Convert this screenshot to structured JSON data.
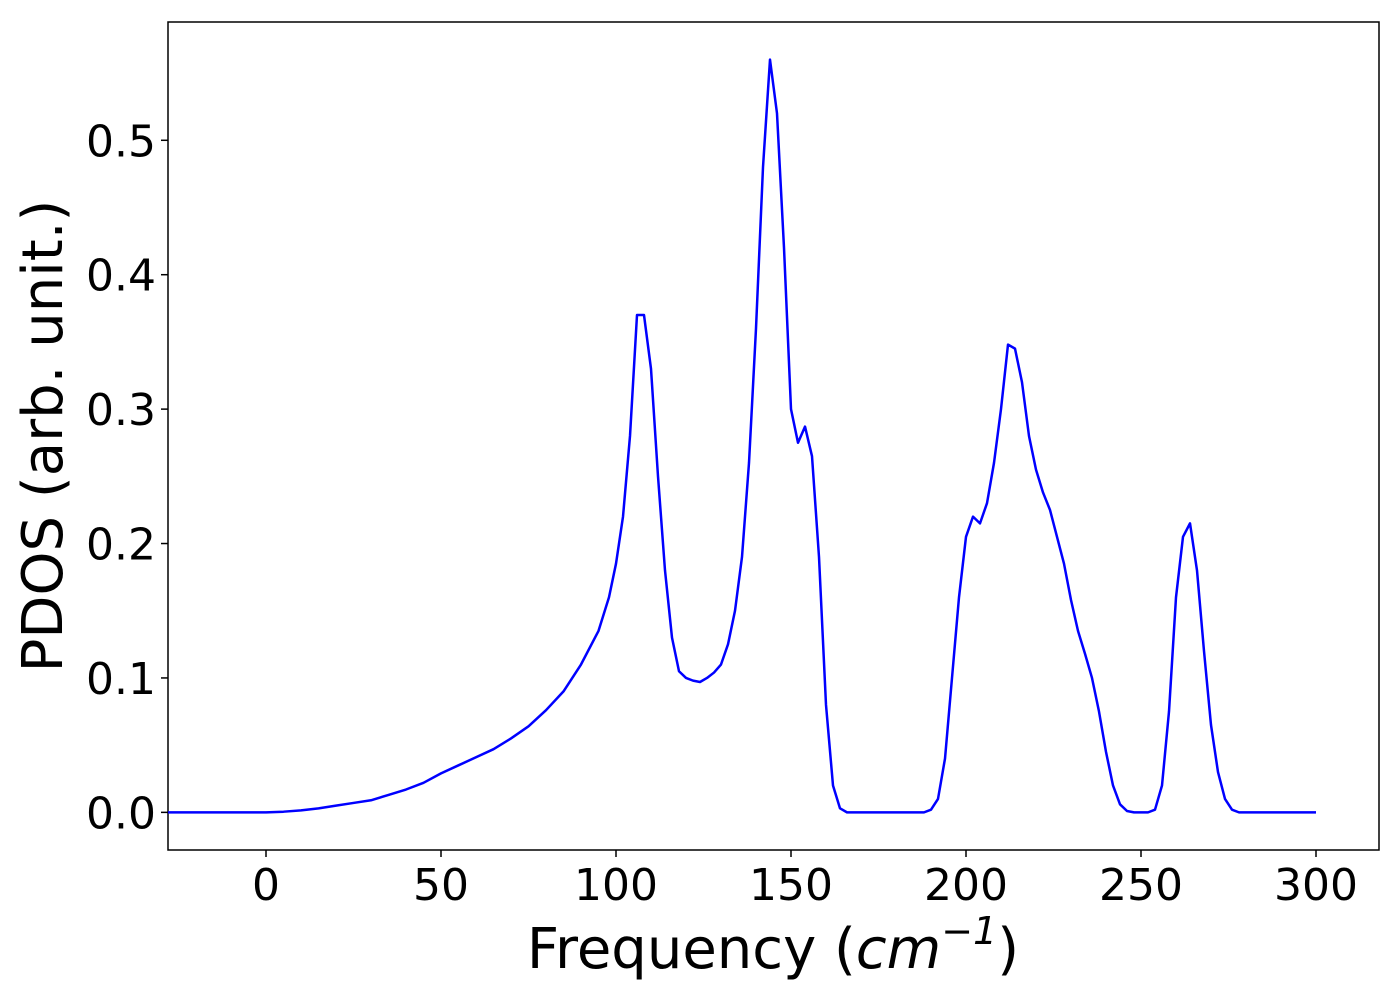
{
  "chart_data": {
    "type": "line",
    "title": "",
    "xlabel": "Frequency (",
    "xlabel_unit": "cm",
    "xlabel_exponent": "−1",
    "xlabel_close": ")",
    "ylabel": "PDOS (arb. unit.)",
    "xlim": [
      -28,
      318
    ],
    "ylim": [
      -0.028,
      0.588
    ],
    "xticks": [
      0,
      50,
      100,
      150,
      200,
      250,
      300
    ],
    "xtick_labels": [
      "0",
      "50",
      "100",
      "150",
      "200",
      "250",
      "300"
    ],
    "yticks": [
      0.0,
      0.1,
      0.2,
      0.3,
      0.4,
      0.5
    ],
    "ytick_labels": [
      "0.0",
      "0.1",
      "0.2",
      "0.3",
      "0.4",
      "0.5"
    ],
    "grid": false,
    "line_color": "#0000ff",
    "series": [
      {
        "x": [
          -28,
          -20,
          -10,
          0,
          5,
          10,
          15,
          20,
          25,
          30,
          35,
          40,
          45,
          50,
          55,
          60,
          65,
          70,
          75,
          80,
          85,
          90,
          95,
          98,
          100,
          102,
          104,
          106,
          108,
          110,
          112,
          114,
          116,
          118,
          120,
          122,
          124,
          126,
          128,
          130,
          132,
          134,
          136,
          138,
          140,
          142,
          144,
          146,
          148,
          150,
          152,
          154,
          156,
          158,
          160,
          162,
          164,
          166,
          170,
          180,
          188,
          190,
          192,
          194,
          196,
          198,
          200,
          202,
          204,
          206,
          208,
          210,
          212,
          214,
          216,
          218,
          220,
          222,
          224,
          226,
          228,
          230,
          232,
          234,
          236,
          238,
          240,
          242,
          244,
          246,
          248,
          250,
          252,
          254,
          256,
          258,
          260,
          262,
          264,
          266,
          268,
          270,
          272,
          274,
          276,
          278,
          280,
          290,
          300
        ],
        "y": [
          0.0,
          0.0,
          0.0,
          0.0,
          0.0005,
          0.0015,
          0.003,
          0.005,
          0.007,
          0.009,
          0.013,
          0.017,
          0.022,
          0.029,
          0.035,
          0.041,
          0.047,
          0.055,
          0.064,
          0.076,
          0.09,
          0.11,
          0.135,
          0.16,
          0.185,
          0.22,
          0.28,
          0.37,
          0.37,
          0.33,
          0.25,
          0.18,
          0.13,
          0.105,
          0.1,
          0.098,
          0.097,
          0.1,
          0.104,
          0.11,
          0.125,
          0.15,
          0.19,
          0.26,
          0.36,
          0.48,
          0.56,
          0.52,
          0.42,
          0.3,
          0.275,
          0.287,
          0.265,
          0.19,
          0.08,
          0.02,
          0.003,
          0.0,
          0.0,
          0.0,
          0.0,
          0.002,
          0.01,
          0.04,
          0.1,
          0.16,
          0.205,
          0.22,
          0.215,
          0.23,
          0.26,
          0.3,
          0.348,
          0.345,
          0.32,
          0.28,
          0.255,
          0.238,
          0.225,
          0.205,
          0.185,
          0.158,
          0.135,
          0.118,
          0.1,
          0.075,
          0.045,
          0.02,
          0.006,
          0.001,
          0.0,
          0.0,
          0.0,
          0.002,
          0.02,
          0.075,
          0.16,
          0.205,
          0.215,
          0.18,
          0.12,
          0.065,
          0.03,
          0.01,
          0.002,
          0.0,
          0.0,
          0.0,
          0.0
        ]
      }
    ]
  }
}
